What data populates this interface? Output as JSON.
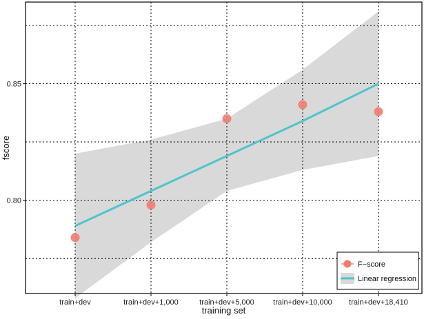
{
  "chart_data": {
    "type": "scatter",
    "title": "",
    "xlabel": "training set",
    "ylabel": "fscore",
    "categories": [
      "train+dev",
      "train+dev+1,000",
      "train+dev+5,000",
      "train+dev+10,000",
      "train+dev+18,410"
    ],
    "yticks": [
      0.8,
      0.85
    ],
    "ytick_labels": [
      "0.80",
      "0.85"
    ],
    "ylim": [
      0.76,
      0.885
    ],
    "grid": true,
    "legend_position": "bottom-right",
    "series": [
      {
        "name": "F−score",
        "kind": "points",
        "color": "#f07c71",
        "values": [
          0.784,
          0.798,
          0.835,
          0.841,
          0.838
        ]
      },
      {
        "name": "Linear regression",
        "kind": "line",
        "color": "#4cc5cb",
        "values": [
          0.789,
          0.804,
          0.819,
          0.834,
          0.85
        ],
        "ci_lower": [
          0.758,
          0.782,
          0.804,
          0.813,
          0.819
        ],
        "ci_upper": [
          0.82,
          0.826,
          0.835,
          0.856,
          0.881
        ],
        "ci_color": "#d9d9d9"
      }
    ]
  }
}
